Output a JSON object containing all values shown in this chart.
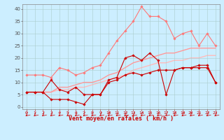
{
  "background_color": "#cceeff",
  "grid_color": "#aacccc",
  "xlabel": "Vent moyen/en rafales ( km/h )",
  "xlabel_color": "#cc0000",
  "xlabel_fontsize": 6,
  "xtick_fontsize": 4.5,
  "ytick_fontsize": 5,
  "ylim": [
    -1,
    42
  ],
  "xlim": [
    -0.5,
    23.5
  ],
  "yticks": [
    0,
    5,
    10,
    15,
    20,
    25,
    30,
    35,
    40
  ],
  "xticks": [
    0,
    1,
    2,
    3,
    4,
    5,
    6,
    7,
    8,
    9,
    10,
    11,
    12,
    13,
    14,
    15,
    16,
    17,
    18,
    19,
    20,
    21,
    22,
    23
  ],
  "lines": [
    {
      "x": [
        0,
        1,
        2,
        3,
        4,
        5,
        6,
        7,
        8,
        9,
        10,
        11,
        12,
        13,
        14,
        15,
        16,
        17,
        18,
        19,
        20,
        21,
        22,
        23
      ],
      "y": [
        6,
        6,
        6,
        11,
        7,
        6,
        8,
        5,
        5,
        5,
        11,
        12,
        20,
        21,
        19,
        22,
        19,
        5,
        15,
        16,
        16,
        16,
        16,
        10
      ],
      "color": "#cc0000",
      "linewidth": 0.8,
      "marker": "D",
      "markersize": 1.8,
      "zorder": 5
    },
    {
      "x": [
        0,
        1,
        2,
        3,
        4,
        5,
        6,
        7,
        8,
        9,
        10,
        11,
        12,
        13,
        14,
        15,
        16,
        17,
        18,
        19,
        20,
        21,
        22,
        23
      ],
      "y": [
        6,
        6,
        6,
        3,
        3,
        3,
        2,
        1,
        5,
        5,
        10,
        11,
        13,
        14,
        13,
        14,
        15,
        15,
        15,
        16,
        16,
        17,
        17,
        10
      ],
      "color": "#cc0000",
      "linewidth": 0.8,
      "marker": "D",
      "markersize": 1.8,
      "zorder": 4
    },
    {
      "x": [
        0,
        1,
        2,
        3,
        4,
        5,
        6,
        7,
        8,
        9,
        10,
        11,
        12,
        13,
        14,
        15,
        16,
        17,
        18,
        19,
        20,
        21,
        22,
        23
      ],
      "y": [
        13,
        13,
        13,
        12,
        16,
        15,
        13,
        14,
        16,
        17,
        22,
        27,
        31,
        35,
        41,
        37,
        37,
        35,
        28,
        30,
        31,
        25,
        30,
        25
      ],
      "color": "#ff7777",
      "linewidth": 0.8,
      "marker": "D",
      "markersize": 1.8,
      "zorder": 3
    },
    {
      "x": [
        0,
        1,
        2,
        3,
        4,
        5,
        6,
        7,
        8,
        9,
        10,
        11,
        12,
        13,
        14,
        15,
        16,
        17,
        18,
        19,
        20,
        21,
        22,
        23
      ],
      "y": [
        6,
        6,
        6,
        6,
        8,
        8,
        9,
        10,
        10,
        11,
        13,
        14,
        16,
        18,
        19,
        20,
        21,
        22,
        22,
        23,
        24,
        24,
        24,
        24
      ],
      "color": "#ff9999",
      "linewidth": 1.0,
      "marker": null,
      "markersize": 0,
      "zorder": 2
    },
    {
      "x": [
        0,
        1,
        2,
        3,
        4,
        5,
        6,
        7,
        8,
        9,
        10,
        11,
        12,
        13,
        14,
        15,
        16,
        17,
        18,
        19,
        20,
        21,
        22,
        23
      ],
      "y": [
        6,
        6,
        6,
        6,
        7,
        7,
        8,
        8,
        9,
        10,
        11,
        12,
        13,
        15,
        16,
        17,
        18,
        18,
        19,
        19,
        20,
        20,
        21,
        21
      ],
      "color": "#ffbbbb",
      "linewidth": 1.0,
      "marker": null,
      "markersize": 0,
      "zorder": 1
    }
  ]
}
